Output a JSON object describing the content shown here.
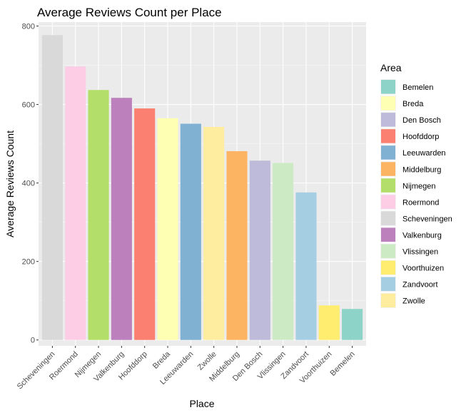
{
  "chart_data": {
    "type": "bar",
    "title": "Average Reviews Count per Place",
    "xlabel": "Place",
    "ylabel": "Average Reviews Count",
    "ylim": [
      -15,
      810
    ],
    "yticks": [
      0,
      200,
      400,
      600,
      800
    ],
    "grid": true,
    "legend_position": "right",
    "legend_title": "Area",
    "categories": [
      "Scheveningen",
      "Roermond",
      "Nijmegen",
      "Valkenburg",
      "Hoofddorp",
      "Breda",
      "Leeuwarden",
      "Zwolle",
      "Middelburg",
      "Den Bosch",
      "Vlissingen",
      "Zandvoort",
      "Voorthuizen",
      "Bemelen"
    ],
    "values": [
      777,
      697,
      637,
      617,
      590,
      565,
      551,
      543,
      481,
      457,
      451,
      376,
      88,
      79
    ],
    "colors": {
      "Bemelen": "#8DD3C7",
      "Breda": "#FFFFB3",
      "Den Bosch": "#BEBADA",
      "Hoofddorp": "#FB8072",
      "Leeuwarden": "#80B1D3",
      "Middelburg": "#FDB462",
      "Nijmegen": "#B3DE69",
      "Roermond": "#FCCDE5",
      "Scheveningen": "#D9D9D9",
      "Valkenburg": "#BC80BD",
      "Vlissingen": "#CCEBC5",
      "Voorthuizen": "#FFED6F",
      "Zandvoort": "#A6CEE3",
      "Zwolle": "#FFED9F"
    },
    "legend": [
      "Bemelen",
      "Breda",
      "Den Bosch",
      "Hoofddorp",
      "Leeuwarden",
      "Middelburg",
      "Nijmegen",
      "Roermond",
      "Scheveningen",
      "Valkenburg",
      "Vlissingen",
      "Voorthuizen",
      "Zandvoort",
      "Zwolle"
    ]
  }
}
